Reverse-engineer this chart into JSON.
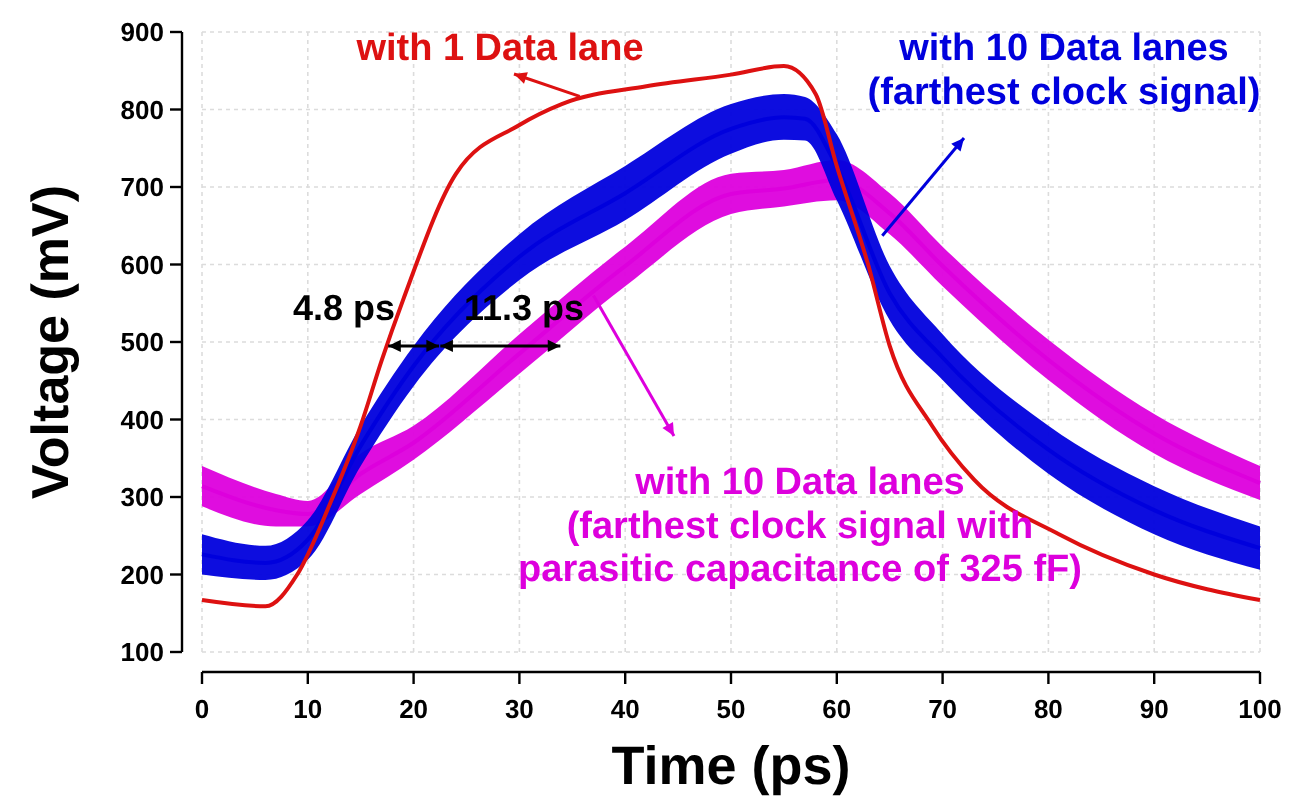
{
  "chart_data": {
    "type": "line",
    "xlabel": "Time (ps)",
    "ylabel": "Voltage (mV)",
    "xlim": [
      0,
      100
    ],
    "ylim": [
      100,
      900
    ],
    "xticks": [
      0,
      10,
      20,
      30,
      40,
      50,
      60,
      70,
      80,
      90,
      100
    ],
    "yticks": [
      100,
      200,
      300,
      400,
      500,
      600,
      700,
      800,
      900
    ],
    "grid": true,
    "marker": "none",
    "line_style": "solid",
    "series": [
      {
        "color": "#dd1111",
        "x": [
          0,
          6,
          9,
          12,
          15,
          17,
          19,
          24,
          30,
          34,
          42,
          50,
          55,
          58,
          60,
          63,
          65,
          69,
          73,
          81,
          90,
          100
        ],
        "values": [
          167,
          159,
          200,
          288,
          392,
          477,
          554,
          717,
          780,
          807,
          830,
          845,
          856,
          820,
          727,
          598,
          495,
          392,
          322,
          252,
          200,
          167
        ]
      },
      {
        "color": "#0000dd",
        "x": [
          0,
          6,
          10,
          15,
          20,
          30,
          40,
          50,
          55,
          57,
          60,
          65,
          70,
          80,
          90,
          100
        ],
        "values": [
          226,
          215,
          245,
          366,
          469,
          610,
          692,
          775,
          790,
          788,
          726,
          563,
          480,
          361,
          283,
          234
        ],
        "lower": [
          200,
          193,
          219,
          340,
          443,
          580,
          657,
          743,
          761,
          760,
          683,
          528,
          451,
          330,
          252,
          206
        ],
        "upper": [
          252,
          237,
          270,
          392,
          495,
          639,
          727,
          807,
          820,
          816,
          768,
          598,
          510,
          392,
          314,
          262
        ]
      },
      {
        "color": "#dd00dd",
        "x": [
          0,
          7,
          10,
          15,
          20,
          30,
          40,
          50,
          55,
          60,
          65,
          70,
          80,
          90,
          100
        ],
        "values": [
          314,
          283,
          278,
          330,
          370,
          485,
          598,
          691,
          698,
          709,
          666,
          598,
          477,
          382,
          318
        ],
        "lower": [
          288,
          262,
          262,
          304,
          348,
          459,
          572,
          665,
          675,
          683,
          639,
          572,
          451,
          356,
          296
        ],
        "upper": [
          340,
          304,
          295,
          356,
          392,
          510,
          623,
          717,
          722,
          735,
          692,
          623,
          503,
          407,
          340
        ]
      }
    ],
    "annotations": [
      {
        "text": "with 1 Data lane",
        "x": 35.7,
        "y": 817
      },
      {
        "text": "with 10 Data lanes\n(farthest clock signal)",
        "x": 64.3,
        "y": 637
      },
      {
        "text": "with 10 Data lanes\n(farthest clock signal with\nparasitic capacitance of 325 fF)",
        "x": 37,
        "y": 560
      },
      {
        "text": "4.8 ps",
        "x": 20,
        "y": 495
      },
      {
        "text": "11.3 ps",
        "x": 28.2,
        "y": 495
      }
    ]
  }
}
